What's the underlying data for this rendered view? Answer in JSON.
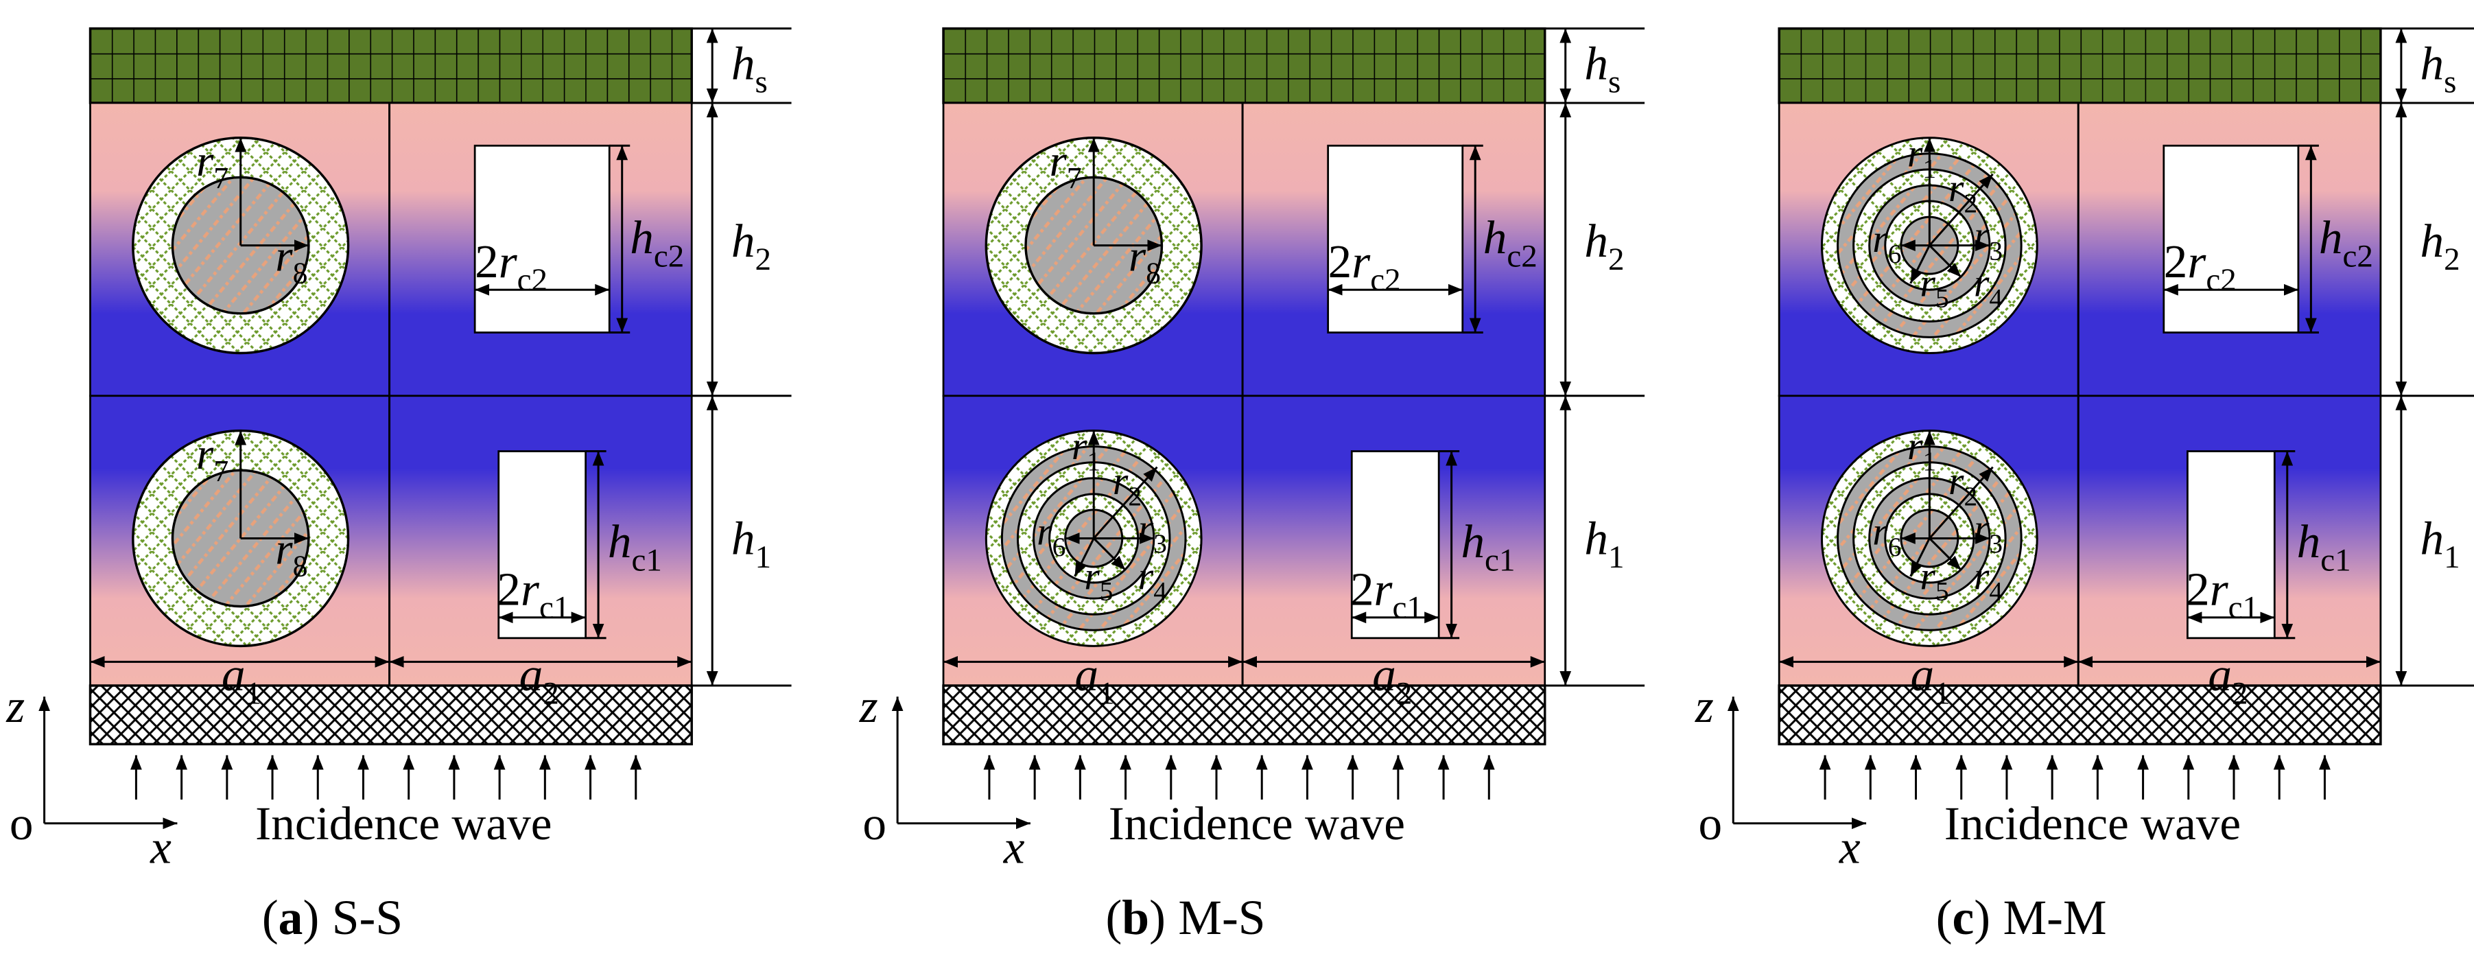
{
  "panels": [
    {
      "caption": {
        "open": "(",
        "letter": "a",
        "close": ")",
        "text": "S-S"
      },
      "labels": {
        "hs": {
          "main": "h",
          "sub": "s"
        },
        "h2": {
          "main": "h",
          "sub": "2"
        },
        "h1": {
          "main": "h",
          "sub": "1"
        },
        "hc2": {
          "main": "h",
          "sub": "c2"
        },
        "hc1": {
          "main": "h",
          "sub": "c1"
        },
        "w2": {
          "pre": "2",
          "main": "r",
          "sub": "c2"
        },
        "w1": {
          "pre": "2",
          "main": "r",
          "sub": "c1"
        },
        "a1": {
          "main": "a",
          "sub": "1"
        },
        "a2": {
          "main": "a",
          "sub": "2"
        }
      },
      "upper": {
        "kind": "single",
        "labels": [
          {
            "main": "r",
            "sub": "7"
          },
          {
            "main": "r",
            "sub": "8"
          }
        ]
      },
      "lower": {
        "kind": "single",
        "labels": [
          {
            "main": "r",
            "sub": "7"
          },
          {
            "main": "r",
            "sub": "8"
          }
        ]
      },
      "axes": {
        "origin": "o",
        "z": "z",
        "x": "x"
      },
      "incidence": "Incidence wave"
    },
    {
      "caption": {
        "open": "(",
        "letter": "b",
        "close": ")",
        "text": "M-S"
      },
      "labels": {
        "hs": {
          "main": "h",
          "sub": "s"
        },
        "h2": {
          "main": "h",
          "sub": "2"
        },
        "h1": {
          "main": "h",
          "sub": "1"
        },
        "hc2": {
          "main": "h",
          "sub": "c2"
        },
        "hc1": {
          "main": "h",
          "sub": "c1"
        },
        "w2": {
          "pre": "2",
          "main": "r",
          "sub": "c2"
        },
        "w1": {
          "pre": "2",
          "main": "r",
          "sub": "c1"
        },
        "a1": {
          "main": "a",
          "sub": "1"
        },
        "a2": {
          "main": "a",
          "sub": "2"
        }
      },
      "upper": {
        "kind": "single",
        "labels": [
          {
            "main": "r",
            "sub": "7"
          },
          {
            "main": "r",
            "sub": "8"
          }
        ]
      },
      "lower": {
        "kind": "multi",
        "labels": [
          {
            "main": "r",
            "sub": "1"
          },
          {
            "main": "r",
            "sub": "2"
          },
          {
            "main": "r",
            "sub": "3"
          },
          {
            "main": "r",
            "sub": "4"
          },
          {
            "main": "r",
            "sub": "5"
          },
          {
            "main": "r",
            "sub": "6"
          }
        ]
      },
      "axes": {
        "origin": "o",
        "z": "z",
        "x": "x"
      },
      "incidence": "Incidence wave"
    },
    {
      "caption": {
        "open": "(",
        "letter": "c",
        "close": ")",
        "text": "M-M"
      },
      "labels": {
        "hs": {
          "main": "h",
          "sub": "s"
        },
        "h2": {
          "main": "h",
          "sub": "2"
        },
        "h1": {
          "main": "h",
          "sub": "1"
        },
        "hc2": {
          "main": "h",
          "sub": "c2"
        },
        "hc1": {
          "main": "h",
          "sub": "c1"
        },
        "w2": {
          "pre": "2",
          "main": "r",
          "sub": "c2"
        },
        "w1": {
          "pre": "2",
          "main": "r",
          "sub": "c1"
        },
        "a1": {
          "main": "a",
          "sub": "1"
        },
        "a2": {
          "main": "a",
          "sub": "2"
        }
      },
      "upper": {
        "kind": "multi",
        "labels": [
          {
            "main": "r",
            "sub": "1"
          },
          {
            "main": "r",
            "sub": "2"
          },
          {
            "main": "r",
            "sub": "3"
          },
          {
            "main": "r",
            "sub": "4"
          },
          {
            "main": "r",
            "sub": "5"
          },
          {
            "main": "r",
            "sub": "6"
          }
        ]
      },
      "lower": {
        "kind": "multi",
        "labels": [
          {
            "main": "r",
            "sub": "1"
          },
          {
            "main": "r",
            "sub": "2"
          },
          {
            "main": "r",
            "sub": "3"
          },
          {
            "main": "r",
            "sub": "4"
          },
          {
            "main": "r",
            "sub": "5"
          },
          {
            "main": "r",
            "sub": "6"
          }
        ]
      },
      "axes": {
        "origin": "o",
        "z": "z",
        "x": "x"
      },
      "incidence": "Incidence wave"
    }
  ]
}
